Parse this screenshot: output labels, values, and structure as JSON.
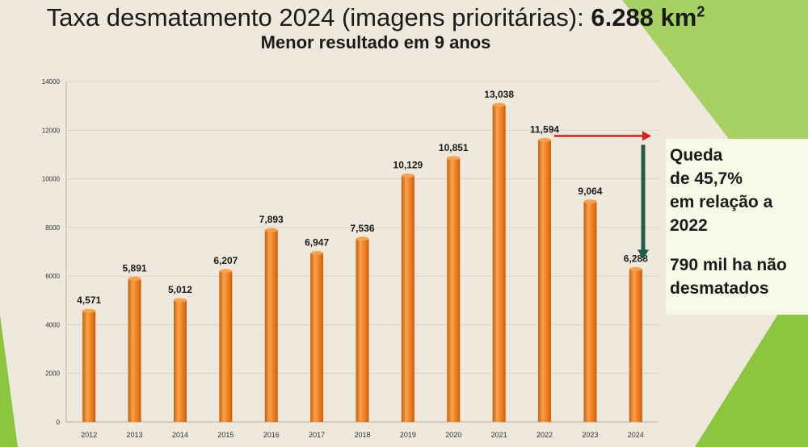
{
  "title": {
    "main": "Taxa desmatamento 2024 (imagens prioritárias): ",
    "value": "6.288 km",
    "sup": "2",
    "subtitle": "Menor resultado em 9 anos"
  },
  "callout": {
    "lines": [
      "Queda",
      "de 45,7%",
      "em relação a",
      "2022"
    ],
    "lines2": [
      "790 mil ha não",
      "desmatados"
    ]
  },
  "colors": {
    "bar": "#f07d1a",
    "bar_dark": "#c85e0a",
    "bar_light": "#f7a24f",
    "red_arrow": "#e01b1b",
    "green_arrow": "#1f5c4a",
    "grid": "#cfc9b8",
    "green_bg": "#8cc63f"
  },
  "chart_data": {
    "type": "bar",
    "categories": [
      "2012",
      "2013",
      "2014",
      "2015",
      "2016",
      "2017",
      "2018",
      "2019",
      "2020",
      "2021",
      "2022",
      "2023",
      "2024"
    ],
    "values": [
      4571,
      5891,
      5012,
      6207,
      7893,
      6947,
      7536,
      10129,
      10851,
      13038,
      11594,
      9064,
      6288
    ],
    "data_labels": [
      "4,571",
      "5,891",
      "5,012",
      "6,207",
      "7,893",
      "6,947",
      "7,536",
      "10,129",
      "10,851",
      "13,038",
      "11,594",
      "9,064",
      "6,288"
    ],
    "yticks": [
      0,
      2000,
      4000,
      6000,
      8000,
      10000,
      12000,
      14000
    ],
    "ylim": [
      0,
      14000
    ],
    "grid": true,
    "legend": "none",
    "annotations": [
      {
        "type": "arrow-right",
        "from": "2022",
        "color": "red"
      },
      {
        "type": "arrow-down",
        "from_value": 11594,
        "to_value": 6288,
        "color": "dark-green"
      }
    ]
  }
}
